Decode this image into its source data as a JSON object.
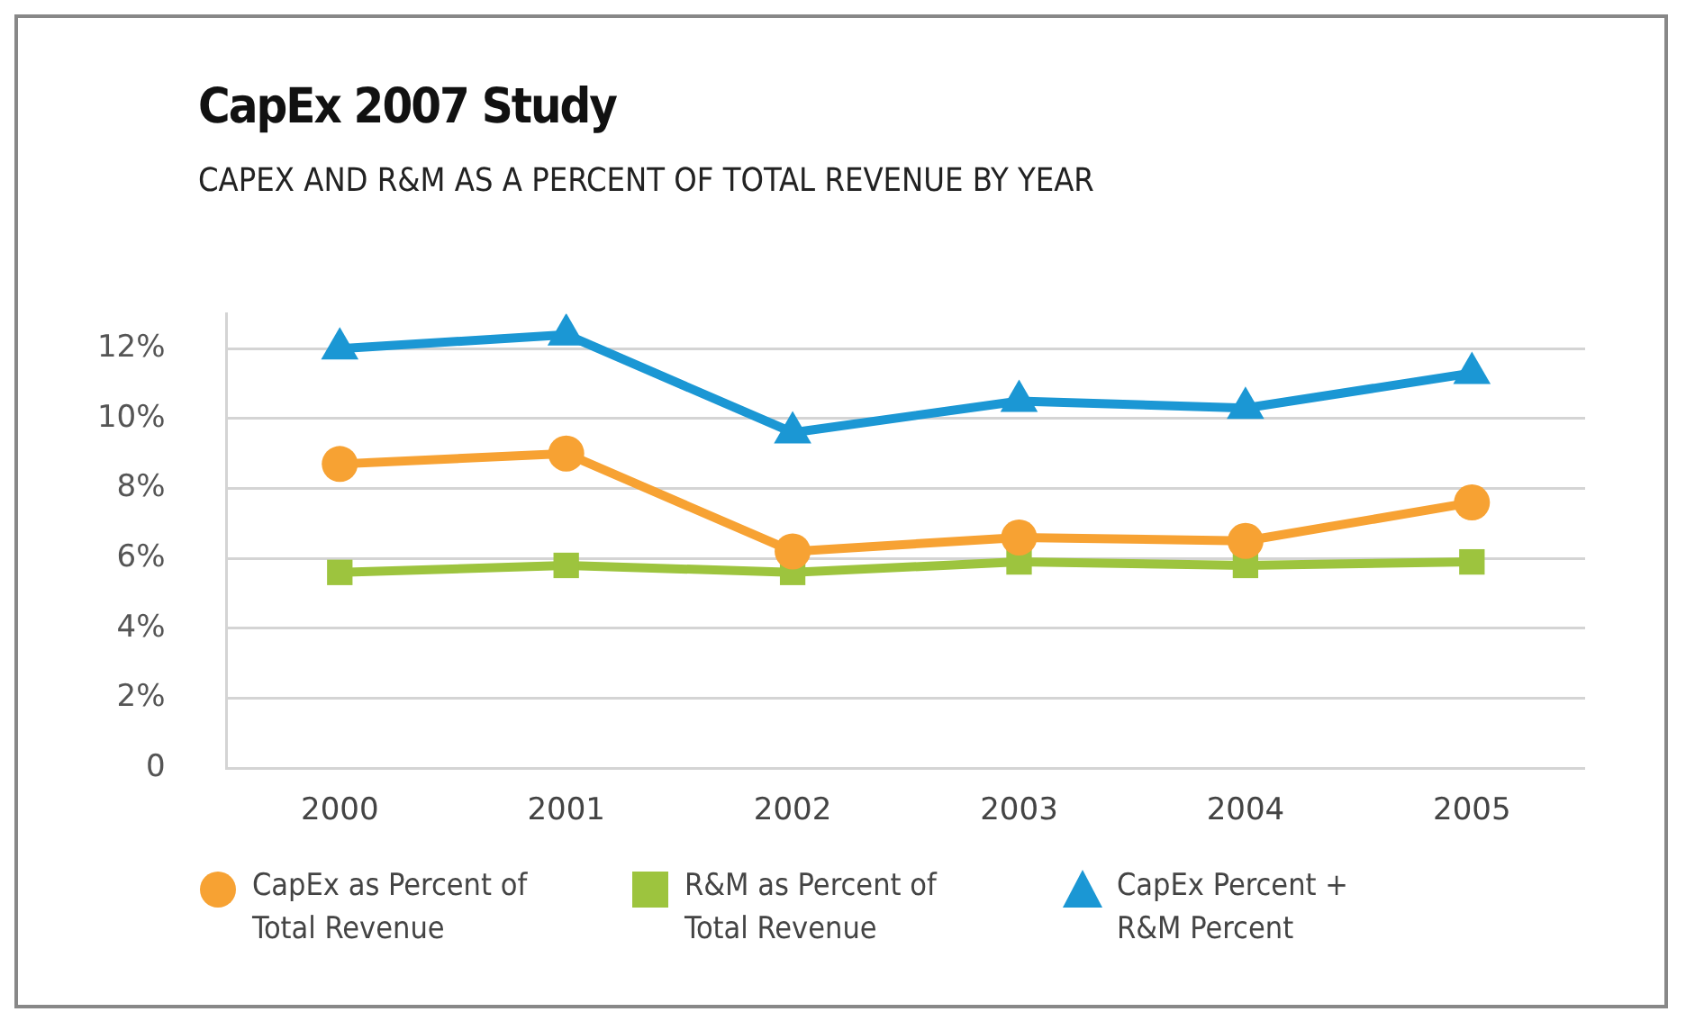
{
  "chart_data": {
    "type": "line",
    "title": "CapEx 2007 Study",
    "subtitle": "CAPEX AND R&M AS A PERCENT OF TOTAL REVENUE BY YEAR",
    "categories": [
      "2000",
      "2001",
      "2002",
      "2003",
      "2004",
      "2005"
    ],
    "series": [
      {
        "name": "CapEx as Percent of Total Revenue",
        "color": "#f7a233",
        "marker": "circle",
        "values": [
          8.7,
          9.0,
          6.2,
          6.6,
          6.5,
          7.6
        ]
      },
      {
        "name": "R&M as Percent of Total Revenue",
        "color": "#9dc43e",
        "marker": "square",
        "values": [
          5.6,
          5.8,
          5.6,
          5.9,
          5.8,
          5.9
        ]
      },
      {
        "name": "CapEx Percent + R&M Percent",
        "color": "#1b97d4",
        "marker": "triangle",
        "values": [
          12.0,
          12.4,
          9.6,
          10.5,
          10.3,
          11.3
        ]
      }
    ],
    "ylim": [
      0,
      13
    ],
    "yticks": [
      {
        "value": 0,
        "label": "0"
      },
      {
        "value": 2,
        "label": "2%"
      },
      {
        "value": 4,
        "label": "4%"
      },
      {
        "value": 6,
        "label": "6%"
      },
      {
        "value": 8,
        "label": "8%"
      },
      {
        "value": 10,
        "label": "10%"
      },
      {
        "value": 12,
        "label": "12%"
      }
    ],
    "grid": "y",
    "legend": "bottom",
    "line_style": "solid"
  }
}
